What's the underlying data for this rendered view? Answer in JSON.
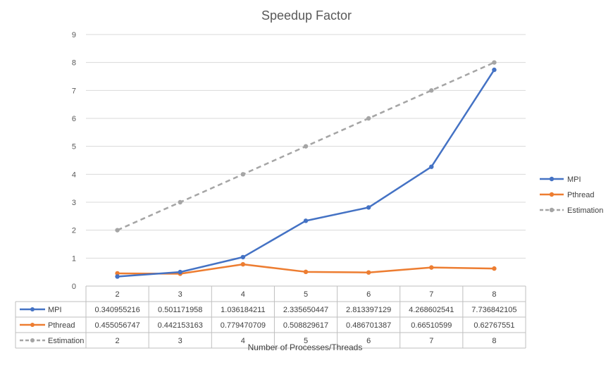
{
  "chart_data": {
    "type": "line",
    "title": "Speedup Factor",
    "xlabel": "Number of Processes/Threads",
    "ylabel": "",
    "categories": [
      "2",
      "3",
      "4",
      "5",
      "6",
      "7",
      "8"
    ],
    "ylim": [
      0,
      9
    ],
    "yticks": [
      "0",
      "1",
      "2",
      "3",
      "4",
      "5",
      "6",
      "7",
      "8",
      "9"
    ],
    "grid": true,
    "legend_position": "right",
    "series": [
      {
        "name": "MPI",
        "color": "#4472C4",
        "dashed": false,
        "values": [
          0.340955216,
          0.501171958,
          1.036184211,
          2.335650447,
          2.813397129,
          4.268602541,
          7.736842105
        ],
        "labels": [
          "0.340955216",
          "0.501171958",
          "1.036184211",
          "2.335650447",
          "2.813397129",
          "4.268602541",
          "7.736842105"
        ]
      },
      {
        "name": "Pthread",
        "color": "#ED7D31",
        "dashed": false,
        "values": [
          0.455056747,
          0.442153163,
          0.779470709,
          0.508829617,
          0.486701387,
          0.66510599,
          0.62767551
        ],
        "labels": [
          "0.455056747",
          "0.442153163",
          "0.779470709",
          "0.508829617",
          "0.486701387",
          "0.66510599",
          "0.62767551"
        ]
      },
      {
        "name": "Estimation",
        "color": "#A5A5A5",
        "dashed": true,
        "values": [
          2,
          3,
          4,
          5,
          6,
          7,
          8
        ],
        "labels": [
          "2",
          "3",
          "4",
          "5",
          "6",
          "7",
          "8"
        ]
      }
    ]
  }
}
